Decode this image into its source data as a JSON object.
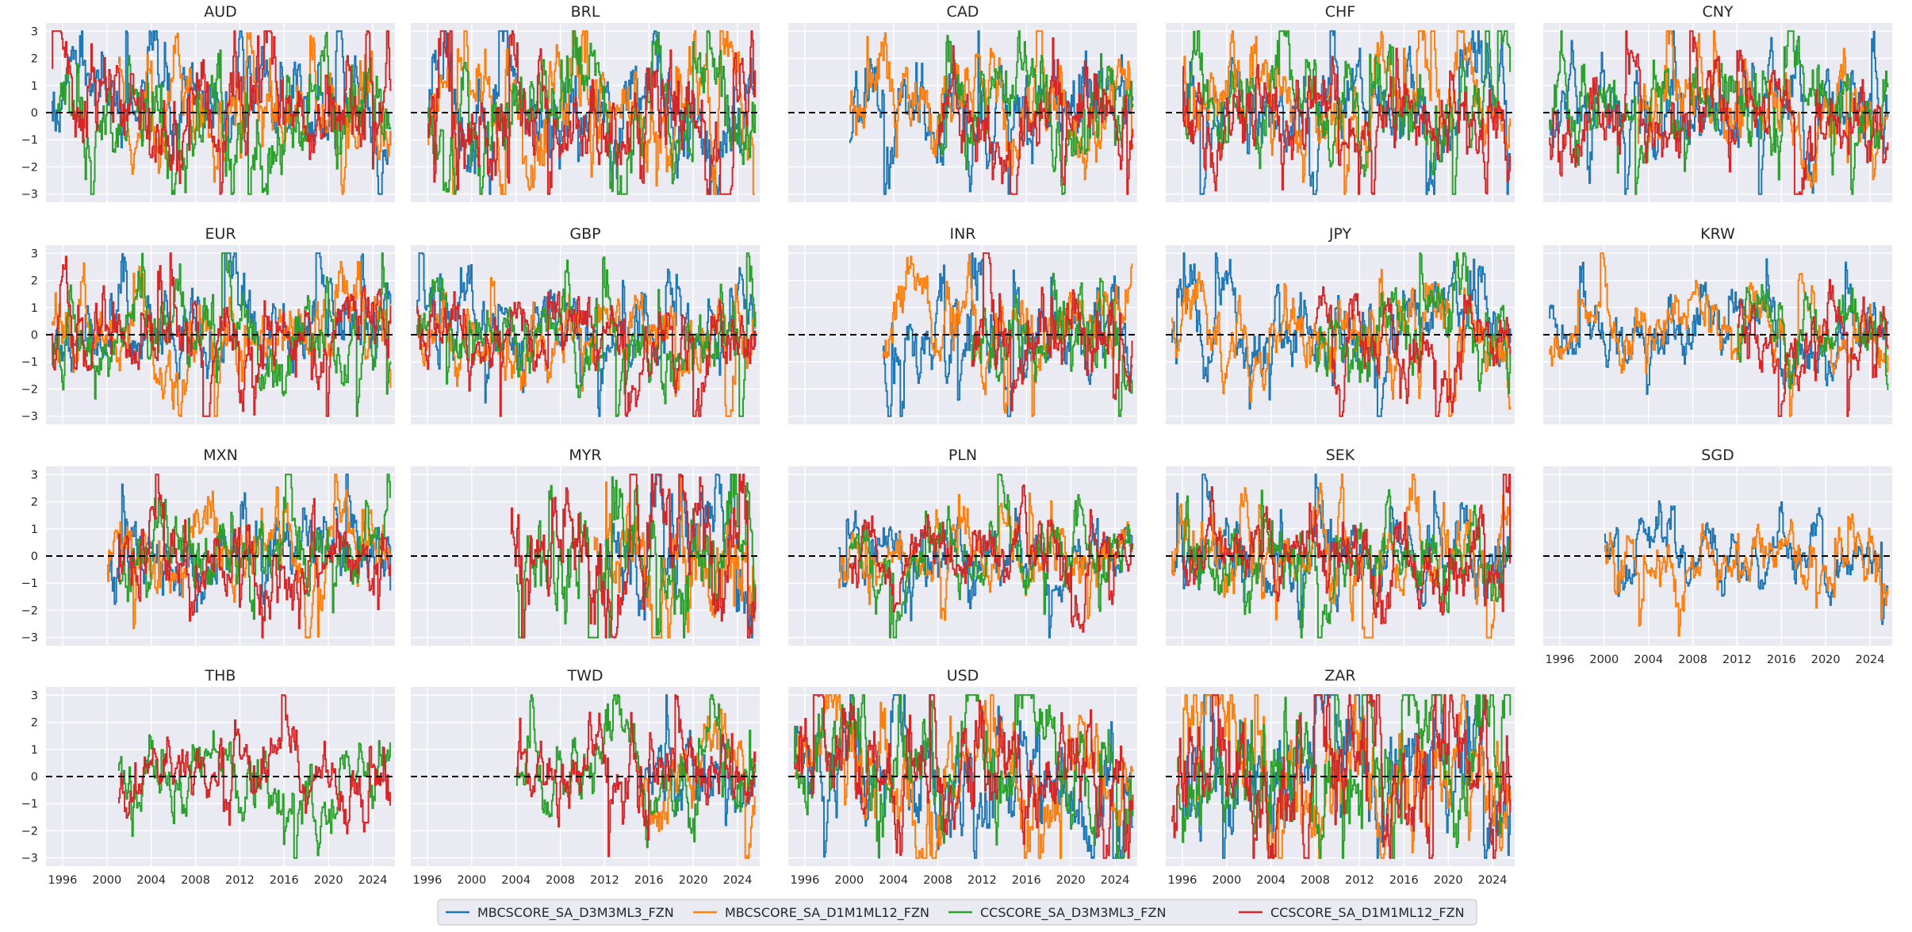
{
  "chart_data": {
    "type": "line",
    "title": "",
    "xlabel": "",
    "ylabel": "",
    "ylim": [
      -3.3,
      3.3
    ],
    "yticks": [
      3,
      2,
      1,
      0,
      -1,
      -2,
      -3
    ],
    "xlim": [
      1994.5,
      2026.0
    ],
    "xticks": [
      1996,
      2000,
      2004,
      2008,
      2012,
      2016,
      2020,
      2024
    ],
    "reference_line": {
      "y": 0,
      "style": "dashed",
      "color": "#000000"
    },
    "legend_position": "bottom-center",
    "series": [
      {
        "name": "MBCSCORE_SA_D3M3ML3_FZN",
        "color": "#1f77b4"
      },
      {
        "name": "MBCSCORE_SA_D1M1ML12_FZN",
        "color": "#ff7f0e"
      },
      {
        "name": "CCSCORE_SA_D3M3ML3_FZN",
        "color": "#2ca02c"
      },
      {
        "name": "CCSCORE_SA_D1M1ML12_FZN",
        "color": "#d62728"
      }
    ],
    "panels": [
      {
        "title": "AUD",
        "start": [
          1995.0,
          2001.0,
          1995.5,
          1995.0
        ],
        "vol": 1.4,
        "xtick_labels": false
      },
      {
        "title": "BRL",
        "start": [
          1996.0,
          1996.0,
          1996.0,
          1996.0
        ],
        "vol": 1.5,
        "xtick_labels": false
      },
      {
        "title": "CAD",
        "start": [
          2000.0,
          2000.0,
          2008.0,
          2008.0
        ],
        "vol": 1.3,
        "xtick_labels": false
      },
      {
        "title": "CHF",
        "start": [
          1996.0,
          1996.0,
          1996.0,
          1996.0
        ],
        "vol": 1.3,
        "xtick_labels": false
      },
      {
        "title": "CNY",
        "start": [
          1995.0,
          2003.0,
          1995.0,
          1995.0
        ],
        "vol": 1.2,
        "xtick_labels": false
      },
      {
        "title": "EUR",
        "start": [
          1995.0,
          1995.0,
          1995.0,
          1995.0
        ],
        "vol": 1.1,
        "xtick_labels": false
      },
      {
        "title": "GBP",
        "start": [
          1995.0,
          1995.0,
          1995.0,
          1995.0
        ],
        "vol": 1.0,
        "xtick_labels": false
      },
      {
        "title": "INR",
        "start": [
          2003.0,
          2003.0,
          2011.0,
          2011.0
        ],
        "vol": 1.2,
        "xtick_labels": false
      },
      {
        "title": "JPY",
        "start": [
          1995.0,
          1995.0,
          2008.0,
          2008.0
        ],
        "vol": 1.1,
        "xtick_labels": false
      },
      {
        "title": "KRW",
        "start": [
          1995.0,
          1995.0,
          2012.0,
          2012.0
        ],
        "vol": 0.9,
        "xtick_labels": false
      },
      {
        "title": "MXN",
        "start": [
          2000.0,
          2000.0,
          2001.0,
          2001.0
        ],
        "vol": 1.1,
        "xtick_labels": false
      },
      {
        "title": "MYR",
        "start": [
          2012.0,
          2011.0,
          2004.0,
          2003.5
        ],
        "vol": 1.7,
        "xtick_labels": false
      },
      {
        "title": "PLN",
        "start": [
          1999.0,
          1999.0,
          2000.0,
          2000.0
        ],
        "vol": 0.9,
        "xtick_labels": false
      },
      {
        "title": "SEK",
        "start": [
          1995.0,
          1995.0,
          1996.0,
          1996.0
        ],
        "vol": 1.1,
        "xtick_labels": false
      },
      {
        "title": "SGD",
        "start": [
          2000.0,
          2000.0,
          null,
          null
        ],
        "vol": 0.8,
        "xtick_labels": true
      },
      {
        "title": "THB",
        "start": [
          null,
          null,
          2001.0,
          2001.0
        ],
        "vol": 1.0,
        "xtick_labels": true
      },
      {
        "title": "TWD",
        "start": [
          2015.0,
          2015.0,
          2004.0,
          2004.0
        ],
        "vol": 1.1,
        "xtick_labels": true
      },
      {
        "title": "USD",
        "start": [
          1995.0,
          1995.0,
          1995.0,
          1995.0
        ],
        "vol": 1.5,
        "xtick_labels": true
      },
      {
        "title": "ZAR",
        "start": [
          1996.0,
          1996.0,
          1995.5,
          1995.0
        ],
        "vol": 1.8,
        "xtick_labels": true
      }
    ]
  }
}
